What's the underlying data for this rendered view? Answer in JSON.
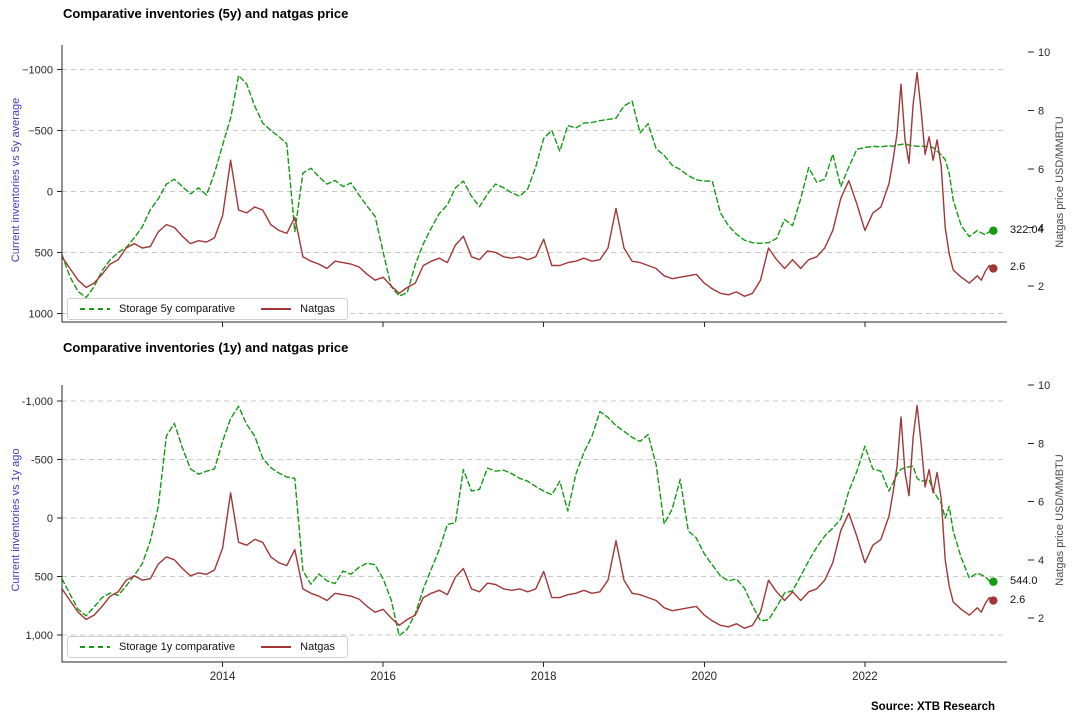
{
  "page": {
    "source_label": "Source: XTB Research"
  },
  "colors": {
    "storage_green": "#149b14",
    "natgas_red": "#a23737",
    "left_label_blue": "#3d3dc0",
    "right_label_gray": "#4a4a4a",
    "grid_gray": "#c9c9c9",
    "axis_dark": "#262626"
  },
  "chart_data": [
    {
      "type": "line",
      "title": "Comparative inventories (5y) and natgas price",
      "left_axis": {
        "label": "Current inventories vs 5y average",
        "inverted": true,
        "tick_values": [
          -1000,
          -500,
          0,
          500,
          1000
        ],
        "tick_labels": [
          "−1000",
          "−500",
          "0",
          "500",
          "1000"
        ],
        "ylim": [
          -1200,
          1070
        ]
      },
      "right_axis": {
        "label": "Natgas price USD/MMBTU",
        "tick_values": [
          2,
          4,
          6,
          8,
          10
        ],
        "tick_labels": [
          "2",
          "4",
          "6",
          "8",
          "10"
        ],
        "ylim": [
          0.77,
          10.24
        ]
      },
      "x_axis": {
        "xlim": [
          2012.0,
          2023.77
        ],
        "ticks": [
          2014,
          2016,
          2018,
          2020,
          2022
        ],
        "tick_labels": [
          "2014",
          "2016",
          "2018",
          "2020",
          "2022"
        ],
        "show_labels": false
      },
      "end_labels": [
        {
          "text": "322.04"
        },
        {
          "text": "2.6"
        }
      ],
      "x": [
        2012.0,
        2012.1,
        2012.2,
        2012.3,
        2012.4,
        2012.5,
        2012.6,
        2012.7,
        2012.8,
        2012.9,
        2013.0,
        2013.1,
        2013.2,
        2013.3,
        2013.4,
        2013.5,
        2013.6,
        2013.7,
        2013.8,
        2013.9,
        2014.0,
        2014.1,
        2014.2,
        2014.3,
        2014.4,
        2014.5,
        2014.6,
        2014.7,
        2014.8,
        2014.9,
        2015.0,
        2015.1,
        2015.2,
        2015.3,
        2015.4,
        2015.5,
        2015.6,
        2015.7,
        2015.8,
        2015.9,
        2016.0,
        2016.1,
        2016.2,
        2016.3,
        2016.4,
        2016.5,
        2016.6,
        2016.7,
        2016.8,
        2016.9,
        2017.0,
        2017.1,
        2017.2,
        2017.3,
        2017.4,
        2017.5,
        2017.6,
        2017.7,
        2017.8,
        2017.9,
        2018.0,
        2018.1,
        2018.2,
        2018.3,
        2018.4,
        2018.5,
        2018.6,
        2018.7,
        2018.8,
        2018.9,
        2019.0,
        2019.1,
        2019.2,
        2019.3,
        2019.4,
        2019.5,
        2019.6,
        2019.7,
        2019.8,
        2019.9,
        2020.0,
        2020.1,
        2020.2,
        2020.3,
        2020.4,
        2020.5,
        2020.6,
        2020.7,
        2020.8,
        2020.9,
        2021.0,
        2021.1,
        2021.2,
        2021.3,
        2021.4,
        2021.5,
        2021.6,
        2021.7,
        2021.8,
        2021.9,
        2022.0,
        2022.1,
        2022.2,
        2022.3,
        2022.35,
        2022.4,
        2022.45,
        2022.5,
        2022.55,
        2022.6,
        2022.65,
        2022.7,
        2022.75,
        2022.8,
        2022.85,
        2022.9,
        2022.95,
        2023.0,
        2023.05,
        2023.1,
        2023.2,
        2023.3,
        2023.4,
        2023.45,
        2023.5,
        2023.55,
        2023.6
      ],
      "series": [
        {
          "name": "Storage 5y comparative",
          "axis": "left",
          "style": "dashed",
          "color": "#149b14",
          "values": [
            520,
            700,
            820,
            870,
            780,
            650,
            560,
            500,
            460,
            380,
            290,
            150,
            60,
            -60,
            -100,
            -40,
            20,
            -30,
            30,
            -150,
            -380,
            -600,
            -950,
            -880,
            -700,
            -560,
            -500,
            -450,
            -390,
            330,
            -150,
            -190,
            -120,
            -60,
            -90,
            -40,
            -70,
            30,
            120,
            205,
            500,
            780,
            857,
            830,
            600,
            430,
            300,
            180,
            110,
            -30,
            -85,
            40,
            125,
            20,
            -60,
            -30,
            10,
            40,
            -20,
            -200,
            -435,
            -500,
            -330,
            -540,
            -520,
            -560,
            -565,
            -580,
            -590,
            -600,
            -700,
            -740,
            -480,
            -555,
            -350,
            -295,
            -215,
            -180,
            -130,
            -95,
            -85,
            -85,
            175,
            280,
            350,
            400,
            420,
            425,
            420,
            385,
            230,
            280,
            60,
            -195,
            -75,
            -100,
            -305,
            -40,
            -200,
            -345,
            -360,
            -370,
            -365,
            -375,
            -370,
            -380,
            -385,
            -390,
            -380,
            -375,
            -370,
            -372,
            -368,
            -365,
            -360,
            -330,
            -300,
            -260,
            -150,
            70,
            280,
            370,
            320,
            340,
            355,
            330,
            322.04
          ]
        },
        {
          "name": "Natgas",
          "axis": "right",
          "style": "solid",
          "color": "#a23737",
          "values": [
            3.0,
            2.6,
            2.2,
            1.95,
            2.1,
            2.4,
            2.75,
            2.9,
            3.3,
            3.45,
            3.3,
            3.35,
            3.85,
            4.1,
            4.0,
            3.7,
            3.45,
            3.55,
            3.5,
            3.65,
            4.4,
            6.3,
            4.6,
            4.5,
            4.7,
            4.6,
            4.1,
            3.9,
            3.8,
            4.35,
            3.0,
            2.85,
            2.75,
            2.6,
            2.85,
            2.8,
            2.75,
            2.65,
            2.4,
            2.2,
            2.3,
            2.0,
            1.75,
            1.95,
            2.1,
            2.7,
            2.85,
            2.95,
            2.8,
            3.4,
            3.7,
            3.0,
            2.9,
            3.2,
            3.15,
            3.0,
            2.95,
            3.0,
            2.9,
            3.0,
            3.6,
            2.7,
            2.7,
            2.8,
            2.85,
            2.95,
            2.85,
            2.9,
            3.3,
            4.65,
            3.3,
            2.85,
            2.8,
            2.7,
            2.6,
            2.35,
            2.25,
            2.3,
            2.35,
            2.4,
            2.1,
            1.9,
            1.75,
            1.7,
            1.8,
            1.65,
            1.75,
            2.2,
            3.3,
            2.9,
            2.6,
            2.9,
            2.6,
            2.9,
            3.0,
            3.3,
            3.9,
            5.0,
            5.6,
            4.8,
            3.9,
            4.5,
            4.7,
            5.5,
            6.3,
            7.2,
            8.9,
            7.0,
            6.2,
            8.2,
            9.3,
            8.0,
            6.5,
            7.1,
            6.3,
            7.0,
            6.1,
            4.0,
            3.1,
            2.55,
            2.3,
            2.1,
            2.35,
            2.2,
            2.5,
            2.7,
            2.6
          ]
        }
      ]
    },
    {
      "type": "line",
      "title": "Comparative inventories (1y) and natgas price",
      "left_axis": {
        "label": "Current inventories vs 1y ago",
        "inverted": true,
        "tick_values": [
          -1000,
          -500,
          0,
          500,
          1000
        ],
        "tick_labels": [
          "-1,000",
          "-500",
          "0",
          "500",
          "1,000"
        ],
        "ylim": [
          -1137,
          1230
        ]
      },
      "right_axis": {
        "label": "Natgas price USD/MMBTU",
        "tick_values": [
          2,
          4,
          6,
          8,
          10
        ],
        "tick_labels": [
          "2",
          "4",
          "6",
          "8",
          "10"
        ],
        "ylim": [
          0.49,
          10.0
        ]
      },
      "x_axis": {
        "xlim": [
          2012.0,
          2023.77
        ],
        "ticks": [
          2014,
          2016,
          2018,
          2020,
          2022
        ],
        "tick_labels": [
          "2014",
          "2016",
          "2018",
          "2020",
          "2022"
        ],
        "show_labels": true
      },
      "end_labels": [
        {
          "text": "544.0"
        },
        {
          "text": "2.6"
        }
      ],
      "x": [
        2012.0,
        2012.1,
        2012.2,
        2012.3,
        2012.4,
        2012.5,
        2012.6,
        2012.7,
        2012.8,
        2012.9,
        2013.0,
        2013.1,
        2013.2,
        2013.3,
        2013.4,
        2013.5,
        2013.6,
        2013.7,
        2013.8,
        2013.9,
        2014.0,
        2014.1,
        2014.2,
        2014.3,
        2014.4,
        2014.5,
        2014.6,
        2014.7,
        2014.8,
        2014.9,
        2015.0,
        2015.1,
        2015.2,
        2015.3,
        2015.4,
        2015.5,
        2015.6,
        2015.7,
        2015.8,
        2015.9,
        2016.0,
        2016.1,
        2016.2,
        2016.3,
        2016.4,
        2016.5,
        2016.6,
        2016.7,
        2016.8,
        2016.9,
        2017.0,
        2017.1,
        2017.2,
        2017.3,
        2017.4,
        2017.5,
        2017.6,
        2017.7,
        2017.8,
        2017.9,
        2018.0,
        2018.1,
        2018.2,
        2018.3,
        2018.4,
        2018.5,
        2018.6,
        2018.7,
        2018.8,
        2018.9,
        2019.0,
        2019.1,
        2019.2,
        2019.3,
        2019.4,
        2019.5,
        2019.6,
        2019.7,
        2019.8,
        2019.9,
        2020.0,
        2020.1,
        2020.2,
        2020.3,
        2020.4,
        2020.5,
        2020.6,
        2020.7,
        2020.8,
        2020.9,
        2021.0,
        2021.1,
        2021.2,
        2021.3,
        2021.4,
        2021.5,
        2021.6,
        2021.7,
        2021.8,
        2021.9,
        2022.0,
        2022.1,
        2022.2,
        2022.3,
        2022.35,
        2022.4,
        2022.45,
        2022.5,
        2022.55,
        2022.6,
        2022.65,
        2022.7,
        2022.75,
        2022.8,
        2022.85,
        2022.9,
        2022.95,
        2023.0,
        2023.05,
        2023.1,
        2023.2,
        2023.3,
        2023.4,
        2023.45,
        2023.5,
        2023.55,
        2023.6
      ],
      "series": [
        {
          "name": "Storage 1y comparative",
          "axis": "left",
          "style": "dashed",
          "color": "#149b14",
          "values": [
            520,
            650,
            780,
            835,
            760,
            680,
            640,
            660,
            580,
            490,
            390,
            196,
            -100,
            -700,
            -810,
            -600,
            -420,
            -375,
            -400,
            -420,
            -656,
            -850,
            -955,
            -800,
            -700,
            -512,
            -430,
            -385,
            -350,
            -340,
            450,
            565,
            478,
            537,
            560,
            452,
            480,
            420,
            385,
            400,
            520,
            700,
            1006,
            950,
            819,
            606,
            435,
            266,
            54,
            40,
            -415,
            -230,
            -245,
            -427,
            -400,
            -410,
            -380,
            -340,
            -315,
            -270,
            -230,
            -200,
            -315,
            -60,
            -373,
            -560,
            -697,
            -910,
            -860,
            -790,
            -741,
            -690,
            -655,
            -714,
            -457,
            51,
            -77,
            -330,
            110,
            170,
            305,
            400,
            494,
            537,
            520,
            600,
            750,
            878,
            870,
            760,
            640,
            622,
            494,
            366,
            250,
            154,
            85,
            9,
            -230,
            -400,
            -614,
            -418,
            -400,
            -230,
            -300,
            -375,
            -418,
            -430,
            -437,
            -444,
            -340,
            -315,
            -322,
            -330,
            -230,
            -180,
            -128,
            0,
            -100,
            111,
            340,
            512,
            470,
            485,
            500,
            537,
            544.0
          ]
        },
        {
          "name": "Natgas",
          "axis": "right",
          "style": "solid",
          "color": "#a23737",
          "values": [
            3.0,
            2.6,
            2.2,
            1.95,
            2.1,
            2.4,
            2.75,
            2.9,
            3.3,
            3.45,
            3.3,
            3.35,
            3.85,
            4.1,
            4.0,
            3.7,
            3.45,
            3.55,
            3.5,
            3.65,
            4.4,
            6.3,
            4.6,
            4.5,
            4.7,
            4.6,
            4.1,
            3.9,
            3.8,
            4.35,
            3.0,
            2.85,
            2.75,
            2.6,
            2.85,
            2.8,
            2.75,
            2.65,
            2.4,
            2.2,
            2.3,
            2.0,
            1.75,
            1.95,
            2.1,
            2.7,
            2.85,
            2.95,
            2.8,
            3.4,
            3.7,
            3.0,
            2.9,
            3.2,
            3.15,
            3.0,
            2.95,
            3.0,
            2.9,
            3.0,
            3.6,
            2.7,
            2.7,
            2.8,
            2.85,
            2.95,
            2.85,
            2.9,
            3.3,
            4.65,
            3.3,
            2.85,
            2.8,
            2.7,
            2.6,
            2.35,
            2.25,
            2.3,
            2.35,
            2.4,
            2.1,
            1.9,
            1.75,
            1.7,
            1.8,
            1.65,
            1.75,
            2.2,
            3.3,
            2.9,
            2.6,
            2.9,
            2.6,
            2.9,
            3.0,
            3.3,
            3.9,
            5.0,
            5.6,
            4.8,
            3.9,
            4.5,
            4.7,
            5.5,
            6.3,
            7.2,
            8.9,
            7.0,
            6.2,
            8.2,
            9.3,
            8.0,
            6.5,
            7.1,
            6.3,
            7.0,
            6.1,
            4.0,
            3.1,
            2.55,
            2.3,
            2.1,
            2.35,
            2.2,
            2.5,
            2.7,
            2.6
          ]
        }
      ]
    }
  ]
}
